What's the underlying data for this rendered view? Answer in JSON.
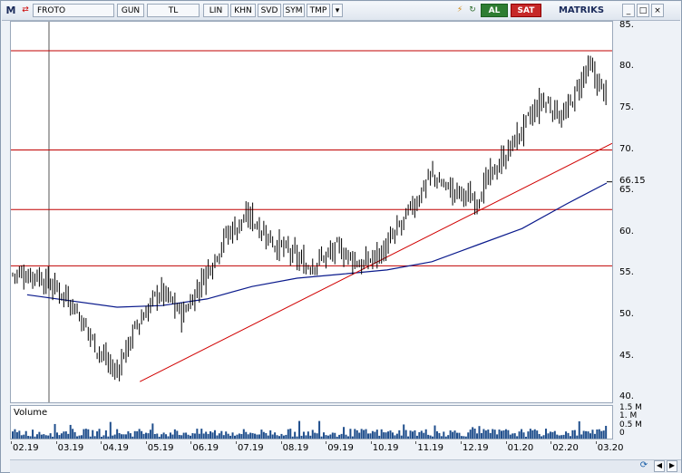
{
  "toolbar": {
    "logo": "M",
    "symbol": "FROTO",
    "period": "GUN",
    "currency": "TL",
    "scale_buttons": [
      "LIN",
      "KHN",
      "SVD",
      "SYM",
      "TMP"
    ],
    "buy_label": "AL",
    "sell_label": "SAT",
    "brand": "MATRIKS"
  },
  "volume": {
    "label": "Volume",
    "axis_labels": [
      "1.5 M",
      "1. M",
      "0.5 M",
      "0"
    ],
    "axis_values": [
      1.5,
      1.0,
      0.5,
      0
    ]
  },
  "last_price_label": "66.15",
  "colors": {
    "candles": "#000000",
    "horizontal_levels": "#c00000",
    "trendline": "#d00000",
    "moving_average": "#0a1a8c",
    "volume": "#1f4e8c"
  },
  "chart_data": {
    "type": "candlestick",
    "x_tick_labels": [
      "02.19",
      "03.19",
      "04.19",
      "05.19",
      "06.19",
      "07.19",
      "08.19",
      "09.19",
      "10.19",
      "11.19",
      "12.19",
      "01.20",
      "02.20",
      "03.20"
    ],
    "y_tick_labels": [
      "85.",
      "80.",
      "75.",
      "70.",
      "65.",
      "60.",
      "55.",
      "50.",
      "45.",
      "40."
    ],
    "ylim": [
      39.5,
      85.5
    ],
    "close_anchors": [
      [
        "02.19",
        55
      ],
      [
        "03.19",
        52
      ],
      [
        "03.19",
        47
      ],
      [
        "04.19",
        43
      ],
      [
        "04.19",
        49
      ],
      [
        "05.19",
        53
      ],
      [
        "05.19",
        50
      ],
      [
        "06.19",
        55
      ],
      [
        "06.19",
        60
      ],
      [
        "07.19",
        62
      ],
      [
        "07.19",
        59
      ],
      [
        "08.19",
        56
      ],
      [
        "09.19",
        58
      ],
      [
        "09.19",
        56
      ],
      [
        "10.19",
        58
      ],
      [
        "10.19",
        62
      ],
      [
        "11.19",
        67
      ],
      [
        "11.19",
        65
      ],
      [
        "12.19",
        64
      ],
      [
        "12.19",
        68
      ],
      [
        "01.20",
        72
      ],
      [
        "01.20",
        76
      ],
      [
        "02.20",
        74
      ],
      [
        "02.20",
        80
      ],
      [
        "03.20",
        76
      ],
      [
        "03.20",
        66.15
      ]
    ],
    "last_close": 66.15,
    "horizontal_levels": [
      82,
      70,
      62.8,
      56
    ],
    "trendline": {
      "from": [
        "04.19",
        42
      ],
      "to": [
        "03.20",
        70.8
      ]
    },
    "moving_average": [
      [
        "02.19",
        52.5
      ],
      [
        "04.19",
        51
      ],
      [
        "05.19",
        51.2
      ],
      [
        "06.19",
        52
      ],
      [
        "07.19",
        53.5
      ],
      [
        "08.19",
        54.5
      ],
      [
        "09.19",
        55
      ],
      [
        "10.19",
        55.5
      ],
      [
        "11.19",
        56.5
      ],
      [
        "12.19",
        58.5
      ],
      [
        "01.20",
        60.5
      ],
      [
        "02.20",
        63.5
      ],
      [
        "03.20",
        66
      ]
    ],
    "grid": false
  }
}
